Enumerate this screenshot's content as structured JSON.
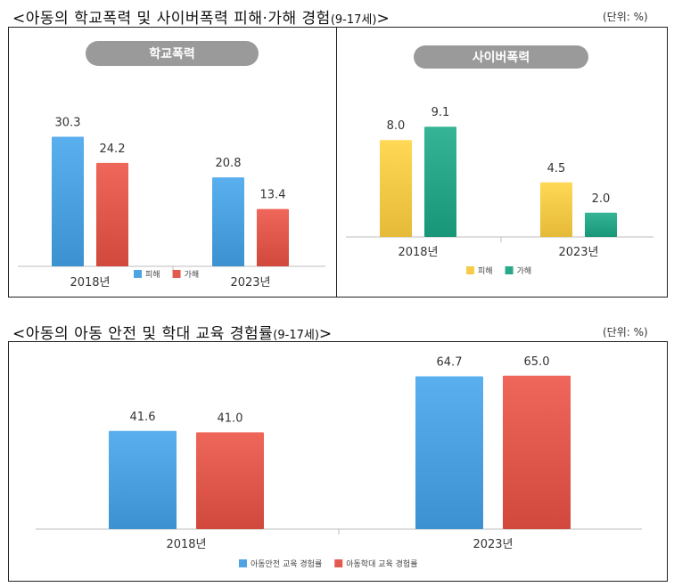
{
  "section1": {
    "title_main": "<아동의 학교폭력 및 사이버폭력 피해·가해 경험",
    "title_small": "(9-17세)",
    "title_end": ">",
    "unit": "(단위: %)"
  },
  "section2": {
    "title_main": "<아동의 아동 안전 및 학대 교육 경험률",
    "title_small": "(9-17세)",
    "title_end": ">",
    "unit": "(단위: %)"
  },
  "colors": {
    "blue": "#4ea3e2",
    "red": "#e35a4e",
    "yellow": "#f7cc4a",
    "teal": "#2aa88a",
    "pill": "#9a9a9a"
  },
  "chart_data": [
    {
      "type": "bar",
      "title": "학교폭력",
      "categories": [
        "2018년",
        "2023년"
      ],
      "series": [
        {
          "name": "피해",
          "values": [
            30.3,
            20.8
          ],
          "color": "#4ea3e2"
        },
        {
          "name": "가해",
          "values": [
            24.2,
            13.4
          ],
          "color": "#e35a4e"
        }
      ],
      "legend": "bottom-center",
      "grid": false
    },
    {
      "type": "bar",
      "title": "사이버폭력",
      "categories": [
        "2018년",
        "2023년"
      ],
      "series": [
        {
          "name": "피해",
          "values": [
            8.0,
            4.5
          ],
          "color": "#f7cc4a"
        },
        {
          "name": "가해",
          "values": [
            9.1,
            2.0
          ],
          "color": "#2aa88a"
        }
      ],
      "legend": "bottom-center",
      "grid": false
    },
    {
      "type": "bar",
      "title": "",
      "categories": [
        "2018년",
        "2023년"
      ],
      "series": [
        {
          "name": "아동안전 교육 경험률",
          "values": [
            41.6,
            64.7
          ],
          "color": "#4ea3e2"
        },
        {
          "name": "아동학대 교육 경험률",
          "values": [
            41.0,
            65.0
          ],
          "color": "#e35a4e"
        }
      ],
      "legend": "bottom-center",
      "grid": false
    }
  ]
}
